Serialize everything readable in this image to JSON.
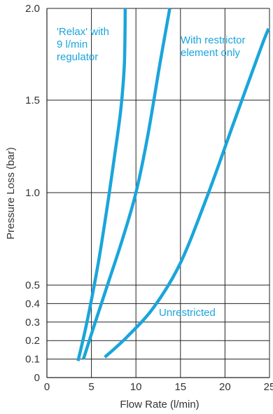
{
  "chart_data": {
    "type": "line",
    "title": "",
    "xlabel": "Flow Rate (l/min)",
    "ylabel": "Pressure Loss (bar)",
    "xlim": [
      0,
      25
    ],
    "ylim": [
      0,
      2.0
    ],
    "xticks": [
      "0",
      "5",
      "10",
      "15",
      "20",
      "25"
    ],
    "yticks": [
      "0",
      "0.1",
      "0.2",
      "0.3",
      "0.4",
      "0.5",
      "1.0",
      "1.5",
      "2.0"
    ],
    "grid": true,
    "line_color": "#1aa5db",
    "series": [
      {
        "name": "'Relax' with 9 l/min regulator",
        "points": [
          [
            3.5,
            0.09
          ],
          [
            4.5,
            0.3
          ],
          [
            5.7,
            0.6
          ],
          [
            6.7,
            0.9
          ],
          [
            7.6,
            1.2
          ],
          [
            8.3,
            1.45
          ],
          [
            8.7,
            1.7
          ],
          [
            8.8,
            2.0
          ]
        ]
      },
      {
        "name": "With restrictor element only",
        "points": [
          [
            4.1,
            0.1
          ],
          [
            5.3,
            0.28
          ],
          [
            6.8,
            0.5
          ],
          [
            8.5,
            0.75
          ],
          [
            10.0,
            1.0
          ],
          [
            11.3,
            1.3
          ],
          [
            12.7,
            1.7
          ],
          [
            13.8,
            2.0
          ]
        ]
      },
      {
        "name": "Unrestricted",
        "points": [
          [
            6.5,
            0.11
          ],
          [
            9.0,
            0.22
          ],
          [
            12.0,
            0.38
          ],
          [
            15.0,
            0.62
          ],
          [
            18.0,
            0.98
          ],
          [
            21.0,
            1.38
          ],
          [
            24.0,
            1.78
          ],
          [
            24.9,
            1.89
          ]
        ]
      }
    ]
  },
  "annotations": [
    {
      "lines": [
        "'Relax' with",
        "9 l/min",
        "regulator"
      ]
    },
    {
      "lines": [
        "With restrictor",
        "element only"
      ]
    },
    {
      "lines": [
        "Unrestricted"
      ]
    }
  ]
}
